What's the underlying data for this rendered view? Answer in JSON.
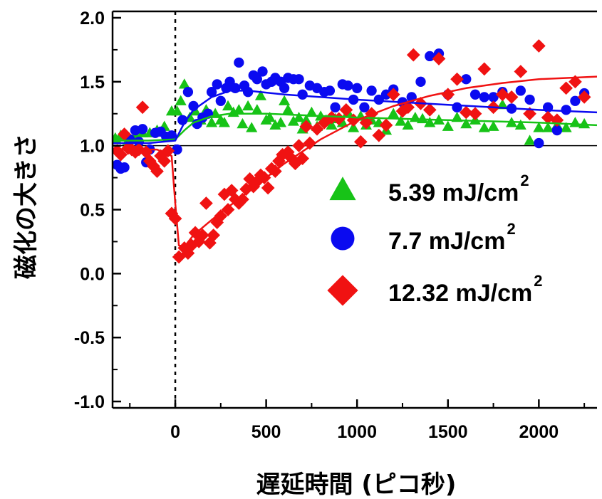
{
  "chart_data": {
    "type": "scatter",
    "xlabel": "遅延時間 (ピコ秒)",
    "ylabel": "磁化の大きさ",
    "xlim": [
      -345,
      2320
    ],
    "ylim": [
      -1.05,
      2.05
    ],
    "xticks": [
      0,
      500,
      1000,
      1500,
      2000
    ],
    "xtick_labels": [
      "0",
      "500",
      "1000",
      "1500",
      "2000"
    ],
    "yticks": [
      -1.0,
      -0.5,
      0.0,
      0.5,
      1.0,
      1.5,
      2.0
    ],
    "ytick_labels": [
      "-1.0",
      "-0.5",
      "0.0",
      "0.5",
      "1.0",
      "1.5",
      "2.0"
    ],
    "reference_line_y": 1.0,
    "time_zero_line_x": 0,
    "grid": false,
    "legend_position": "right, middle",
    "series": [
      {
        "name": "5.39 mJ/cm",
        "name_superscript": "2",
        "marker": "triangle",
        "color": "#17c317",
        "points": [
          [
            -330,
            1.06
          ],
          [
            -300,
            1.08
          ],
          [
            -260,
            1.04
          ],
          [
            -220,
            1.08
          ],
          [
            -180,
            1.1
          ],
          [
            -140,
            1.1
          ],
          [
            -100,
            1.12
          ],
          [
            -60,
            1.15
          ],
          [
            -20,
            1.27
          ],
          [
            10,
            1.27
          ],
          [
            30,
            1.35
          ],
          [
            50,
            1.48
          ],
          [
            80,
            1.22
          ],
          [
            110,
            1.27
          ],
          [
            140,
            1.2
          ],
          [
            170,
            1.28
          ],
          [
            200,
            1.18
          ],
          [
            220,
            1.25
          ],
          [
            250,
            1.2
          ],
          [
            270,
            1.18
          ],
          [
            290,
            1.31
          ],
          [
            320,
            1.26
          ],
          [
            350,
            1.28
          ],
          [
            370,
            1.17
          ],
          [
            400,
            1.31
          ],
          [
            420,
            1.14
          ],
          [
            450,
            1.28
          ],
          [
            470,
            1.39
          ],
          [
            500,
            1.2
          ],
          [
            520,
            1.22
          ],
          [
            550,
            1.16
          ],
          [
            580,
            1.18
          ],
          [
            600,
            1.35
          ],
          [
            620,
            1.28
          ],
          [
            650,
            1.19
          ],
          [
            680,
            1.22
          ],
          [
            700,
            1.13
          ],
          [
            720,
            1.2
          ],
          [
            750,
            1.26
          ],
          [
            780,
            1.15
          ],
          [
            800,
            1.23
          ],
          [
            830,
            1.2
          ],
          [
            860,
            1.16
          ],
          [
            880,
            1.21
          ],
          [
            920,
            1.18
          ],
          [
            950,
            1.26
          ],
          [
            980,
            1.14
          ],
          [
            1020,
            1.23
          ],
          [
            1050,
            1.16
          ],
          [
            1080,
            1.2
          ],
          [
            1120,
            1.18
          ],
          [
            1160,
            1.12
          ],
          [
            1200,
            1.25
          ],
          [
            1240,
            1.19
          ],
          [
            1280,
            1.16
          ],
          [
            1320,
            1.22
          ],
          [
            1360,
            1.21
          ],
          [
            1400,
            1.18
          ],
          [
            1450,
            1.2
          ],
          [
            1500,
            1.15
          ],
          [
            1550,
            1.22
          ],
          [
            1600,
            1.17
          ],
          [
            1650,
            1.2
          ],
          [
            1700,
            1.14
          ],
          [
            1750,
            1.15
          ],
          [
            1800,
            1.32
          ],
          [
            1850,
            1.18
          ],
          [
            1900,
            1.16
          ],
          [
            1950,
            1.04
          ],
          [
            2000,
            1.14
          ],
          [
            2050,
            1.14
          ],
          [
            2100,
            1.16
          ],
          [
            2150,
            1.14
          ],
          [
            2200,
            1.18
          ],
          [
            2250,
            1.17
          ]
        ],
        "fit": [
          [
            -345,
            1.04
          ],
          [
            -150,
            1.04
          ],
          [
            0,
            1.05
          ],
          [
            50,
            1.12
          ],
          [
            100,
            1.18
          ],
          [
            200,
            1.23
          ],
          [
            300,
            1.25
          ],
          [
            500,
            1.25
          ],
          [
            1000,
            1.22
          ],
          [
            1500,
            1.2
          ],
          [
            2000,
            1.18
          ],
          [
            2320,
            1.16
          ]
        ]
      },
      {
        "name": "7.7 mJ/cm",
        "name_superscript": "2",
        "marker": "circle",
        "color": "#0a0af0",
        "points": [
          [
            -320,
            0.85
          ],
          [
            -300,
            0.82
          ],
          [
            -280,
            0.83
          ],
          [
            -250,
            1.05
          ],
          [
            -220,
            1.12
          ],
          [
            -200,
            1.03
          ],
          [
            -180,
            1.13
          ],
          [
            -160,
            0.87
          ],
          [
            -140,
            0.97
          ],
          [
            -110,
            1.1
          ],
          [
            -80,
            1.11
          ],
          [
            -50,
            1.07
          ],
          [
            -20,
            1.08
          ],
          [
            10,
            0.97
          ],
          [
            40,
            1.2
          ],
          [
            70,
            1.42
          ],
          [
            100,
            1.31
          ],
          [
            120,
            1.17
          ],
          [
            150,
            1.22
          ],
          [
            180,
            1.25
          ],
          [
            200,
            1.42
          ],
          [
            230,
            1.48
          ],
          [
            250,
            1.35
          ],
          [
            280,
            1.45
          ],
          [
            300,
            1.5
          ],
          [
            330,
            1.45
          ],
          [
            350,
            1.65
          ],
          [
            380,
            1.47
          ],
          [
            400,
            1.42
          ],
          [
            430,
            1.55
          ],
          [
            450,
            1.52
          ],
          [
            480,
            1.58
          ],
          [
            500,
            1.48
          ],
          [
            530,
            1.5
          ],
          [
            550,
            1.53
          ],
          [
            580,
            1.5
          ],
          [
            600,
            1.45
          ],
          [
            620,
            1.53
          ],
          [
            650,
            1.52
          ],
          [
            680,
            1.52
          ],
          [
            700,
            1.4
          ],
          [
            740,
            1.47
          ],
          [
            780,
            1.45
          ],
          [
            820,
            1.42
          ],
          [
            850,
            1.43
          ],
          [
            880,
            1.3
          ],
          [
            920,
            1.48
          ],
          [
            950,
            1.47
          ],
          [
            980,
            1.36
          ],
          [
            1000,
            1.45
          ],
          [
            1040,
            1.3
          ],
          [
            1080,
            1.43
          ],
          [
            1120,
            1.36
          ],
          [
            1160,
            1.4
          ],
          [
            1200,
            1.44
          ],
          [
            1250,
            1.34
          ],
          [
            1300,
            1.38
          ],
          [
            1350,
            1.5
          ],
          [
            1400,
            1.7
          ],
          [
            1450,
            1.72
          ],
          [
            1500,
            1.4
          ],
          [
            1550,
            1.3
          ],
          [
            1600,
            1.52
          ],
          [
            1650,
            1.4
          ],
          [
            1700,
            1.38
          ],
          [
            1750,
            1.38
          ],
          [
            1800,
            1.42
          ],
          [
            1850,
            1.29
          ],
          [
            1900,
            1.43
          ],
          [
            1950,
            1.36
          ],
          [
            2000,
            1.02
          ],
          [
            2050,
            1.3
          ],
          [
            2100,
            1.12
          ],
          [
            2150,
            1.28
          ],
          [
            2200,
            1.35
          ],
          [
            2250,
            1.41
          ]
        ],
        "fit": [
          [
            -345,
            1.02
          ],
          [
            -150,
            1.02
          ],
          [
            0,
            1.04
          ],
          [
            50,
            1.18
          ],
          [
            100,
            1.28
          ],
          [
            200,
            1.38
          ],
          [
            300,
            1.43
          ],
          [
            400,
            1.43
          ],
          [
            600,
            1.4
          ],
          [
            1000,
            1.36
          ],
          [
            1500,
            1.32
          ],
          [
            2000,
            1.28
          ],
          [
            2320,
            1.26
          ]
        ]
      },
      {
        "name": "12.32 mJ/cm",
        "name_superscript": "2",
        "marker": "diamond",
        "color": "#f01212",
        "points": [
          [
            -320,
            0.96
          ],
          [
            -300,
            0.93
          ],
          [
            -280,
            1.09
          ],
          [
            -260,
            0.98
          ],
          [
            -240,
            0.97
          ],
          [
            -220,
            0.95
          ],
          [
            -200,
            0.97
          ],
          [
            -180,
            1.3
          ],
          [
            -160,
            0.95
          ],
          [
            -140,
            0.88
          ],
          [
            -120,
            0.84
          ],
          [
            -100,
            0.8
          ],
          [
            -80,
            0.92
          ],
          [
            -60,
            0.88
          ],
          [
            -40,
            0.96
          ],
          [
            -20,
            0.47
          ],
          [
            0,
            0.43
          ],
          [
            20,
            0.13
          ],
          [
            50,
            0.2
          ],
          [
            70,
            0.16
          ],
          [
            90,
            0.22
          ],
          [
            110,
            0.32
          ],
          [
            130,
            0.25
          ],
          [
            150,
            0.3
          ],
          [
            170,
            0.55
          ],
          [
            190,
            0.24
          ],
          [
            210,
            0.3
          ],
          [
            230,
            0.4
          ],
          [
            250,
            0.45
          ],
          [
            270,
            0.62
          ],
          [
            290,
            0.5
          ],
          [
            310,
            0.65
          ],
          [
            330,
            0.58
          ],
          [
            350,
            0.55
          ],
          [
            370,
            0.58
          ],
          [
            390,
            0.66
          ],
          [
            410,
            0.74
          ],
          [
            430,
            0.68
          ],
          [
            450,
            0.72
          ],
          [
            470,
            0.77
          ],
          [
            490,
            0.75
          ],
          [
            510,
            0.67
          ],
          [
            530,
            0.82
          ],
          [
            550,
            0.8
          ],
          [
            570,
            0.88
          ],
          [
            590,
            0.93
          ],
          [
            620,
            0.95
          ],
          [
            640,
            0.9
          ],
          [
            660,
            0.86
          ],
          [
            680,
            1.0
          ],
          [
            700,
            0.9
          ],
          [
            720,
            1.15
          ],
          [
            740,
            1.02
          ],
          [
            780,
            1.13
          ],
          [
            820,
            1.18
          ],
          [
            860,
            1.22
          ],
          [
            900,
            1.21
          ],
          [
            940,
            1.28
          ],
          [
            980,
            1.2
          ],
          [
            1020,
            1.03
          ],
          [
            1050,
            1.18
          ],
          [
            1080,
            1.25
          ],
          [
            1120,
            1.08
          ],
          [
            1160,
            1.16
          ],
          [
            1200,
            1.4
          ],
          [
            1250,
            1.27
          ],
          [
            1280,
            1.3
          ],
          [
            1310,
            1.71
          ],
          [
            1350,
            1.33
          ],
          [
            1400,
            1.28
          ],
          [
            1450,
            1.68
          ],
          [
            1500,
            1.4
          ],
          [
            1550,
            1.52
          ],
          [
            1600,
            1.26
          ],
          [
            1650,
            1.25
          ],
          [
            1700,
            1.6
          ],
          [
            1750,
            1.3
          ],
          [
            1800,
            1.4
          ],
          [
            1850,
            1.38
          ],
          [
            1900,
            1.58
          ],
          [
            1950,
            1.25
          ],
          [
            2000,
            1.78
          ],
          [
            2050,
            1.22
          ],
          [
            2100,
            1.2
          ],
          [
            2150,
            1.45
          ],
          [
            2200,
            1.5
          ],
          [
            2250,
            1.38
          ]
        ],
        "fit": [
          [
            -345,
            0.97
          ],
          [
            -100,
            0.97
          ],
          [
            -20,
            0.92
          ],
          [
            0,
            0.55
          ],
          [
            20,
            0.22
          ],
          [
            50,
            0.21
          ],
          [
            100,
            0.3
          ],
          [
            200,
            0.42
          ],
          [
            400,
            0.64
          ],
          [
            600,
            0.86
          ],
          [
            800,
            1.05
          ],
          [
            1000,
            1.2
          ],
          [
            1200,
            1.31
          ],
          [
            1400,
            1.39
          ],
          [
            1600,
            1.45
          ],
          [
            1800,
            1.49
          ],
          [
            2000,
            1.52
          ],
          [
            2320,
            1.54
          ]
        ]
      }
    ]
  }
}
